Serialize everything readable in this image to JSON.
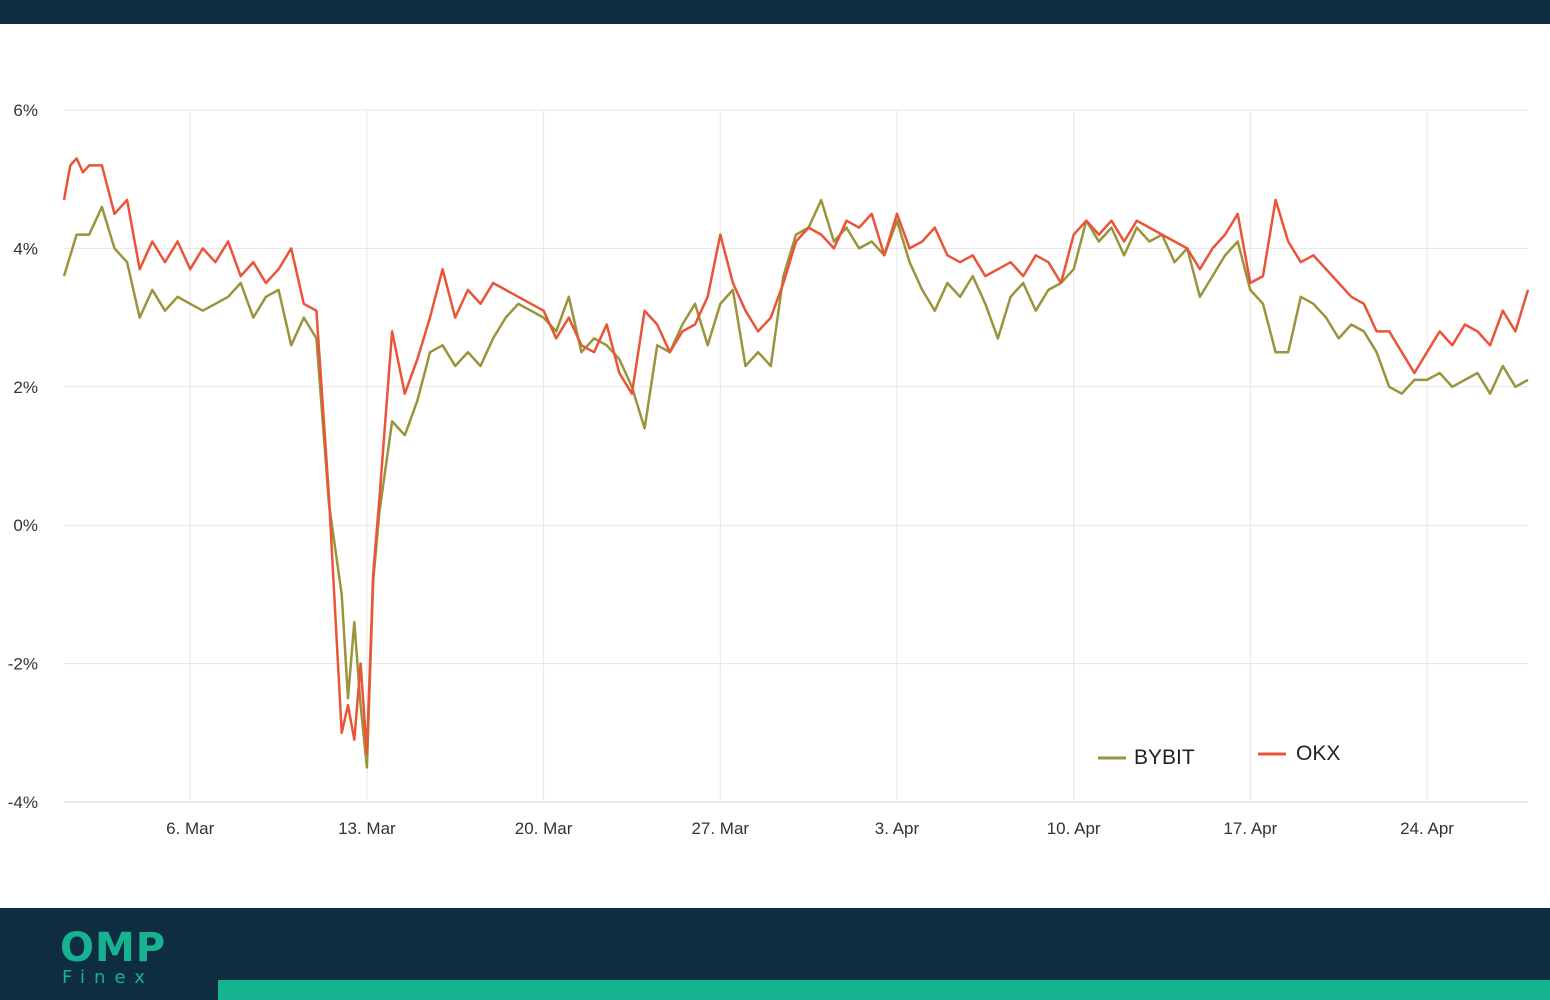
{
  "brand": {
    "name": "OMP",
    "subname": "Finex",
    "colors": {
      "navy": "#0f2d40",
      "accent": "#15b38f"
    }
  },
  "chart_data": {
    "type": "line",
    "title": "",
    "xlabel": "",
    "ylabel": "",
    "x_range": [
      "2023-03-01",
      "2023-04-28"
    ],
    "ylim": [
      -4,
      6
    ],
    "y_ticks": [
      6,
      4,
      2,
      0,
      -2,
      -4
    ],
    "y_tick_labels": [
      "6%",
      "4%",
      "2%",
      "0%",
      "-2%",
      "-4%"
    ],
    "x_ticks": [
      {
        "date": "2023-03-06",
        "label": "6. Mar"
      },
      {
        "date": "2023-03-13",
        "label": "13. Mar"
      },
      {
        "date": "2023-03-20",
        "label": "20. Mar"
      },
      {
        "date": "2023-03-27",
        "label": "27. Mar"
      },
      {
        "date": "2023-04-03",
        "label": "3. Apr"
      },
      {
        "date": "2023-04-10",
        "label": "10. Apr"
      },
      {
        "date": "2023-04-17",
        "label": "17. Apr"
      },
      {
        "date": "2023-04-24",
        "label": "24. Apr"
      }
    ],
    "grid": true,
    "legend_position": "bottom-right",
    "series": [
      {
        "name": "BYBIT",
        "color": "#9a943a",
        "points": [
          [
            "2023-03-01",
            3.6
          ],
          [
            "2023-03-01T12:00",
            4.2
          ],
          [
            "2023-03-02",
            4.2
          ],
          [
            "2023-03-02T12:00",
            4.6
          ],
          [
            "2023-03-03",
            4.0
          ],
          [
            "2023-03-03T12:00",
            3.8
          ],
          [
            "2023-03-04",
            3.0
          ],
          [
            "2023-03-04T12:00",
            3.4
          ],
          [
            "2023-03-05",
            3.1
          ],
          [
            "2023-03-05T12:00",
            3.3
          ],
          [
            "2023-03-06",
            3.2
          ],
          [
            "2023-03-06T12:00",
            3.1
          ],
          [
            "2023-03-07",
            3.2
          ],
          [
            "2023-03-07T12:00",
            3.3
          ],
          [
            "2023-03-08",
            3.5
          ],
          [
            "2023-03-08T12:00",
            3.0
          ],
          [
            "2023-03-09",
            3.3
          ],
          [
            "2023-03-09T12:00",
            3.4
          ],
          [
            "2023-03-10",
            2.6
          ],
          [
            "2023-03-10T12:00",
            3.0
          ],
          [
            "2023-03-11",
            2.7
          ],
          [
            "2023-03-11T12:00",
            0.3
          ],
          [
            "2023-03-12",
            -1.0
          ],
          [
            "2023-03-12T06:00",
            -2.5
          ],
          [
            "2023-03-12T12:00",
            -1.4
          ],
          [
            "2023-03-12T18:00",
            -2.6
          ],
          [
            "2023-03-13",
            -3.5
          ],
          [
            "2023-03-13T06:00",
            -0.8
          ],
          [
            "2023-03-13T12:00",
            0.2
          ],
          [
            "2023-03-14",
            1.5
          ],
          [
            "2023-03-14T12:00",
            1.3
          ],
          [
            "2023-03-15",
            1.8
          ],
          [
            "2023-03-15T12:00",
            2.5
          ],
          [
            "2023-03-16",
            2.6
          ],
          [
            "2023-03-16T12:00",
            2.3
          ],
          [
            "2023-03-17",
            2.5
          ],
          [
            "2023-03-17T12:00",
            2.3
          ],
          [
            "2023-03-18",
            2.7
          ],
          [
            "2023-03-18T12:00",
            3.0
          ],
          [
            "2023-03-19",
            3.2
          ],
          [
            "2023-03-19T12:00",
            3.1
          ],
          [
            "2023-03-20",
            3.0
          ],
          [
            "2023-03-20T12:00",
            2.8
          ],
          [
            "2023-03-21",
            3.3
          ],
          [
            "2023-03-21T12:00",
            2.5
          ],
          [
            "2023-03-22",
            2.7
          ],
          [
            "2023-03-22T12:00",
            2.6
          ],
          [
            "2023-03-23",
            2.4
          ],
          [
            "2023-03-23T12:00",
            2.0
          ],
          [
            "2023-03-24",
            1.4
          ],
          [
            "2023-03-24T12:00",
            2.6
          ],
          [
            "2023-03-25",
            2.5
          ],
          [
            "2023-03-25T12:00",
            2.9
          ],
          [
            "2023-03-26",
            3.2
          ],
          [
            "2023-03-26T12:00",
            2.6
          ],
          [
            "2023-03-27",
            3.2
          ],
          [
            "2023-03-27T12:00",
            3.4
          ],
          [
            "2023-03-28",
            2.3
          ],
          [
            "2023-03-28T12:00",
            2.5
          ],
          [
            "2023-03-29",
            2.3
          ],
          [
            "2023-03-29T12:00",
            3.6
          ],
          [
            "2023-03-30",
            4.2
          ],
          [
            "2023-03-30T12:00",
            4.3
          ],
          [
            "2023-03-31",
            4.7
          ],
          [
            "2023-03-31T12:00",
            4.1
          ],
          [
            "2023-04-01",
            4.3
          ],
          [
            "2023-04-01T12:00",
            4.0
          ],
          [
            "2023-04-02",
            4.1
          ],
          [
            "2023-04-02T12:00",
            3.9
          ],
          [
            "2023-04-03",
            4.4
          ],
          [
            "2023-04-03T12:00",
            3.8
          ],
          [
            "2023-04-04",
            3.4
          ],
          [
            "2023-04-04T12:00",
            3.1
          ],
          [
            "2023-04-05",
            3.5
          ],
          [
            "2023-04-05T12:00",
            3.3
          ],
          [
            "2023-04-06",
            3.6
          ],
          [
            "2023-04-06T12:00",
            3.2
          ],
          [
            "2023-04-07",
            2.7
          ],
          [
            "2023-04-07T12:00",
            3.3
          ],
          [
            "2023-04-08",
            3.5
          ],
          [
            "2023-04-08T12:00",
            3.1
          ],
          [
            "2023-04-09",
            3.4
          ],
          [
            "2023-04-09T12:00",
            3.5
          ],
          [
            "2023-04-10",
            3.7
          ],
          [
            "2023-04-10T12:00",
            4.4
          ],
          [
            "2023-04-11",
            4.1
          ],
          [
            "2023-04-11T12:00",
            4.3
          ],
          [
            "2023-04-12",
            3.9
          ],
          [
            "2023-04-12T12:00",
            4.3
          ],
          [
            "2023-04-13",
            4.1
          ],
          [
            "2023-04-13T12:00",
            4.2
          ],
          [
            "2023-04-14",
            3.8
          ],
          [
            "2023-04-14T12:00",
            4.0
          ],
          [
            "2023-04-15",
            3.3
          ],
          [
            "2023-04-15T12:00",
            3.6
          ],
          [
            "2023-04-16",
            3.9
          ],
          [
            "2023-04-16T12:00",
            4.1
          ],
          [
            "2023-04-17",
            3.4
          ],
          [
            "2023-04-17T12:00",
            3.2
          ],
          [
            "2023-04-18",
            2.5
          ],
          [
            "2023-04-18T12:00",
            2.5
          ],
          [
            "2023-04-19",
            3.3
          ],
          [
            "2023-04-19T12:00",
            3.2
          ],
          [
            "2023-04-20",
            3.0
          ],
          [
            "2023-04-20T12:00",
            2.7
          ],
          [
            "2023-04-21",
            2.9
          ],
          [
            "2023-04-21T12:00",
            2.8
          ],
          [
            "2023-04-22",
            2.5
          ],
          [
            "2023-04-22T12:00",
            2.0
          ],
          [
            "2023-04-23",
            1.9
          ],
          [
            "2023-04-23T12:00",
            2.1
          ],
          [
            "2023-04-24",
            2.1
          ],
          [
            "2023-04-24T12:00",
            2.2
          ],
          [
            "2023-04-25",
            2.0
          ],
          [
            "2023-04-25T12:00",
            2.1
          ],
          [
            "2023-04-26",
            2.2
          ],
          [
            "2023-04-26T12:00",
            1.9
          ],
          [
            "2023-04-27",
            2.3
          ],
          [
            "2023-04-27T12:00",
            2.0
          ],
          [
            "2023-04-28",
            2.1
          ]
        ]
      },
      {
        "name": "OKX",
        "color": "#ea5438",
        "points": [
          [
            "2023-03-01",
            4.7
          ],
          [
            "2023-03-01T06:00",
            5.2
          ],
          [
            "2023-03-01T12:00",
            5.3
          ],
          [
            "2023-03-01T18:00",
            5.1
          ],
          [
            "2023-03-02",
            5.2
          ],
          [
            "2023-03-02T12:00",
            5.2
          ],
          [
            "2023-03-03",
            4.5
          ],
          [
            "2023-03-03T12:00",
            4.7
          ],
          [
            "2023-03-04",
            3.7
          ],
          [
            "2023-03-04T12:00",
            4.1
          ],
          [
            "2023-03-05",
            3.8
          ],
          [
            "2023-03-05T12:00",
            4.1
          ],
          [
            "2023-03-06",
            3.7
          ],
          [
            "2023-03-06T12:00",
            4.0
          ],
          [
            "2023-03-07",
            3.8
          ],
          [
            "2023-03-07T12:00",
            4.1
          ],
          [
            "2023-03-08",
            3.6
          ],
          [
            "2023-03-08T12:00",
            3.8
          ],
          [
            "2023-03-09",
            3.5
          ],
          [
            "2023-03-09T12:00",
            3.7
          ],
          [
            "2023-03-10",
            4.0
          ],
          [
            "2023-03-10T12:00",
            3.2
          ],
          [
            "2023-03-11",
            3.1
          ],
          [
            "2023-03-11T12:00",
            0.4
          ],
          [
            "2023-03-12",
            -3.0
          ],
          [
            "2023-03-12T06:00",
            -2.6
          ],
          [
            "2023-03-12T12:00",
            -3.1
          ],
          [
            "2023-03-12T18:00",
            -2.0
          ],
          [
            "2023-03-13",
            -3.3
          ],
          [
            "2023-03-13T06:00",
            -0.7
          ],
          [
            "2023-03-13T12:00",
            0.4
          ],
          [
            "2023-03-14",
            2.8
          ],
          [
            "2023-03-14T12:00",
            1.9
          ],
          [
            "2023-03-15",
            2.4
          ],
          [
            "2023-03-15T12:00",
            3.0
          ],
          [
            "2023-03-16",
            3.7
          ],
          [
            "2023-03-16T12:00",
            3.0
          ],
          [
            "2023-03-17",
            3.4
          ],
          [
            "2023-03-17T12:00",
            3.2
          ],
          [
            "2023-03-18",
            3.5
          ],
          [
            "2023-03-18T12:00",
            3.4
          ],
          [
            "2023-03-19",
            3.3
          ],
          [
            "2023-03-19T12:00",
            3.2
          ],
          [
            "2023-03-20",
            3.1
          ],
          [
            "2023-03-20T12:00",
            2.7
          ],
          [
            "2023-03-21",
            3.0
          ],
          [
            "2023-03-21T12:00",
            2.6
          ],
          [
            "2023-03-22",
            2.5
          ],
          [
            "2023-03-22T12:00",
            2.9
          ],
          [
            "2023-03-23",
            2.2
          ],
          [
            "2023-03-23T12:00",
            1.9
          ],
          [
            "2023-03-24",
            3.1
          ],
          [
            "2023-03-24T12:00",
            2.9
          ],
          [
            "2023-03-25",
            2.5
          ],
          [
            "2023-03-25T12:00",
            2.8
          ],
          [
            "2023-03-26",
            2.9
          ],
          [
            "2023-03-26T12:00",
            3.3
          ],
          [
            "2023-03-27",
            4.2
          ],
          [
            "2023-03-27T12:00",
            3.5
          ],
          [
            "2023-03-28",
            3.1
          ],
          [
            "2023-03-28T12:00",
            2.8
          ],
          [
            "2023-03-29",
            3.0
          ],
          [
            "2023-03-29T12:00",
            3.5
          ],
          [
            "2023-03-30",
            4.1
          ],
          [
            "2023-03-30T12:00",
            4.3
          ],
          [
            "2023-03-31",
            4.2
          ],
          [
            "2023-03-31T12:00",
            4.0
          ],
          [
            "2023-04-01",
            4.4
          ],
          [
            "2023-04-01T12:00",
            4.3
          ],
          [
            "2023-04-02",
            4.5
          ],
          [
            "2023-04-02T12:00",
            3.9
          ],
          [
            "2023-04-03",
            4.5
          ],
          [
            "2023-04-03T12:00",
            4.0
          ],
          [
            "2023-04-04",
            4.1
          ],
          [
            "2023-04-04T12:00",
            4.3
          ],
          [
            "2023-04-05",
            3.9
          ],
          [
            "2023-04-05T12:00",
            3.8
          ],
          [
            "2023-04-06",
            3.9
          ],
          [
            "2023-04-06T12:00",
            3.6
          ],
          [
            "2023-04-07",
            3.7
          ],
          [
            "2023-04-07T12:00",
            3.8
          ],
          [
            "2023-04-08",
            3.6
          ],
          [
            "2023-04-08T12:00",
            3.9
          ],
          [
            "2023-04-09",
            3.8
          ],
          [
            "2023-04-09T12:00",
            3.5
          ],
          [
            "2023-04-10",
            4.2
          ],
          [
            "2023-04-10T12:00",
            4.4
          ],
          [
            "2023-04-11",
            4.2
          ],
          [
            "2023-04-11T12:00",
            4.4
          ],
          [
            "2023-04-12",
            4.1
          ],
          [
            "2023-04-12T12:00",
            4.4
          ],
          [
            "2023-04-13",
            4.3
          ],
          [
            "2023-04-13T12:00",
            4.2
          ],
          [
            "2023-04-14",
            4.1
          ],
          [
            "2023-04-14T12:00",
            4.0
          ],
          [
            "2023-04-15",
            3.7
          ],
          [
            "2023-04-15T12:00",
            4.0
          ],
          [
            "2023-04-16",
            4.2
          ],
          [
            "2023-04-16T12:00",
            4.5
          ],
          [
            "2023-04-17",
            3.5
          ],
          [
            "2023-04-17T12:00",
            3.6
          ],
          [
            "2023-04-18",
            4.7
          ],
          [
            "2023-04-18T12:00",
            4.1
          ],
          [
            "2023-04-19",
            3.8
          ],
          [
            "2023-04-19T12:00",
            3.9
          ],
          [
            "2023-04-20",
            3.7
          ],
          [
            "2023-04-20T12:00",
            3.5
          ],
          [
            "2023-04-21",
            3.3
          ],
          [
            "2023-04-21T12:00",
            3.2
          ],
          [
            "2023-04-22",
            2.8
          ],
          [
            "2023-04-22T12:00",
            2.8
          ],
          [
            "2023-04-23",
            2.5
          ],
          [
            "2023-04-23T12:00",
            2.2
          ],
          [
            "2023-04-24",
            2.5
          ],
          [
            "2023-04-24T12:00",
            2.8
          ],
          [
            "2023-04-25",
            2.6
          ],
          [
            "2023-04-25T12:00",
            2.9
          ],
          [
            "2023-04-26",
            2.8
          ],
          [
            "2023-04-26T12:00",
            2.6
          ],
          [
            "2023-04-27",
            3.1
          ],
          [
            "2023-04-27T12:00",
            2.8
          ],
          [
            "2023-04-28",
            3.4
          ]
        ]
      }
    ]
  }
}
